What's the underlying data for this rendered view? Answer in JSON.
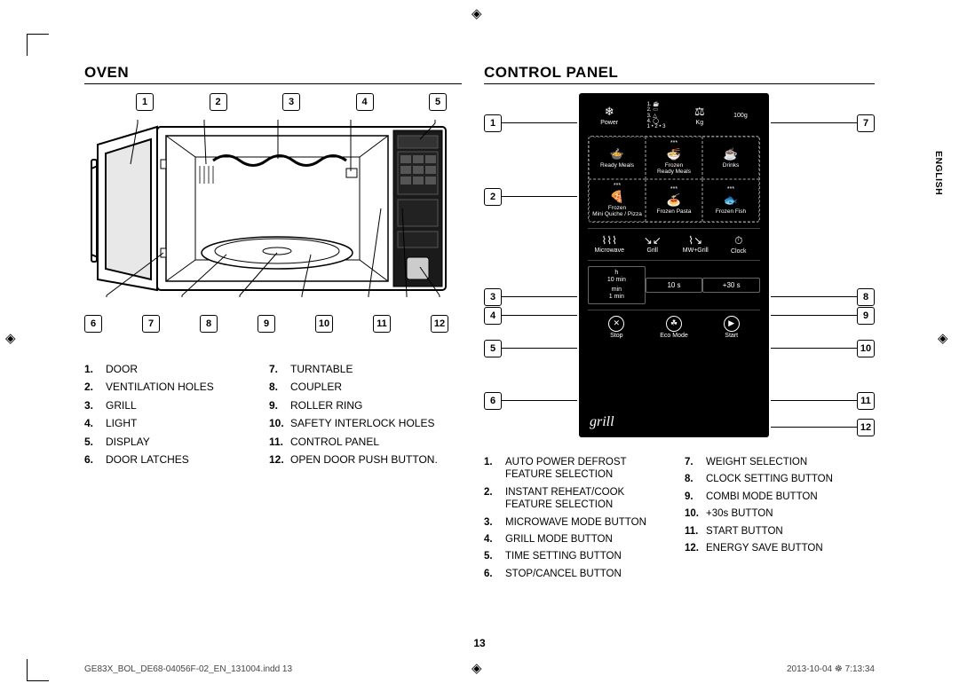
{
  "side_label": "ENGLISH",
  "page_number": "13",
  "footer_left": "GE83X_BOL_DE68-04056F-02_EN_131004.indd   13",
  "footer_right": "2013-10-04   ☸ 7:13:34",
  "oven": {
    "title": "OVEN",
    "top_numbers": [
      "1",
      "2",
      "3",
      "4",
      "5"
    ],
    "bottom_numbers": [
      "6",
      "7",
      "8",
      "9",
      "10",
      "11",
      "12"
    ],
    "items_col1": [
      {
        "n": "1.",
        "t": "DOOR"
      },
      {
        "n": "2.",
        "t": "VENTILATION HOLES"
      },
      {
        "n": "3.",
        "t": "GRILL"
      },
      {
        "n": "4.",
        "t": "LIGHT"
      },
      {
        "n": "5.",
        "t": "DISPLAY"
      },
      {
        "n": "6.",
        "t": "DOOR LATCHES"
      }
    ],
    "items_col2": [
      {
        "n": "7.",
        "t": "TURNTABLE"
      },
      {
        "n": "8.",
        "t": "COUPLER"
      },
      {
        "n": "9.",
        "t": "ROLLER RING"
      },
      {
        "n": "10.",
        "t": "SAFETY INTERLOCK HOLES"
      },
      {
        "n": "11.",
        "t": "CONTROL PANEL"
      },
      {
        "n": "12.",
        "t": "OPEN DOOR PUSH BUTTON."
      }
    ]
  },
  "cp": {
    "title": "CONTROL PANEL",
    "left_nums": [
      "1",
      "2",
      "3",
      "4",
      "5",
      "6"
    ],
    "right_nums": [
      "7",
      "8",
      "9",
      "10",
      "11",
      "12"
    ],
    "left_pos": [
      24,
      107,
      220,
      241,
      278,
      337
    ],
    "right_pos": [
      24,
      220,
      241,
      278,
      337,
      367
    ],
    "panel": {
      "power": "Power",
      "kg": "Kg",
      "g": "100g",
      "listnums": "1. ☕\n2. ▭\n3. △\n4. ◯\n1 • 2 • 3",
      "food": [
        {
          "s": "",
          "l": "Ready Meals",
          "icon": "🍲"
        },
        {
          "s": "***",
          "l": "Frozen\nReady Meals",
          "icon": "🍜"
        },
        {
          "s": "",
          "l": "Drinks",
          "icon": "☕"
        },
        {
          "s": "***",
          "l": "Frozen\nMini Quiche / Pizza",
          "icon": "🍕"
        },
        {
          "s": "***",
          "l": "Frozen Pasta",
          "icon": "🍝"
        },
        {
          "s": "***",
          "l": "Frozen Fish",
          "icon": "🐟"
        }
      ],
      "modes": [
        {
          "l": "Microwave",
          "icon": "⌇⌇⌇"
        },
        {
          "l": "Grill",
          "icon": "↘↙"
        },
        {
          "l": "MW+Grill",
          "icon": "⌇↘"
        },
        {
          "l": "Clock",
          "icon": "⏱"
        }
      ],
      "time_h_label": "h",
      "time_h_val": "10 min",
      "time_m_label": "min",
      "time_m_val": "1 min",
      "time_10s": "10 s",
      "time_30s": "+30 s",
      "bottom": [
        {
          "l": "Stop",
          "icon": "✕"
        },
        {
          "l": "Eco Mode",
          "icon": "☘"
        },
        {
          "l": "Start",
          "icon": "▶"
        }
      ],
      "grill_logo": "grill"
    },
    "items_col1": [
      {
        "n": "1.",
        "t": "AUTO POWER DEFROST FEATURE SELECTION"
      },
      {
        "n": "2.",
        "t": "INSTANT REHEAT/COOK FEATURE SELECTION"
      },
      {
        "n": "3.",
        "t": "MICROWAVE MODE BUTTON"
      },
      {
        "n": "4.",
        "t": "GRILL MODE BUTTON"
      },
      {
        "n": "5.",
        "t": "TIME SETTING BUTTON"
      },
      {
        "n": "6.",
        "t": "STOP/CANCEL BUTTON"
      }
    ],
    "items_col2": [
      {
        "n": "7.",
        "t": "WEIGHT SELECTION"
      },
      {
        "n": "8.",
        "t": "CLOCK SETTING BUTTON"
      },
      {
        "n": "9.",
        "t": "COMBI MODE BUTTON"
      },
      {
        "n": "10.",
        "t": "+30s BUTTON"
      },
      {
        "n": "11.",
        "t": "START BUTTON"
      },
      {
        "n": "12.",
        "t": "ENERGY SAVE BUTTON"
      }
    ]
  }
}
